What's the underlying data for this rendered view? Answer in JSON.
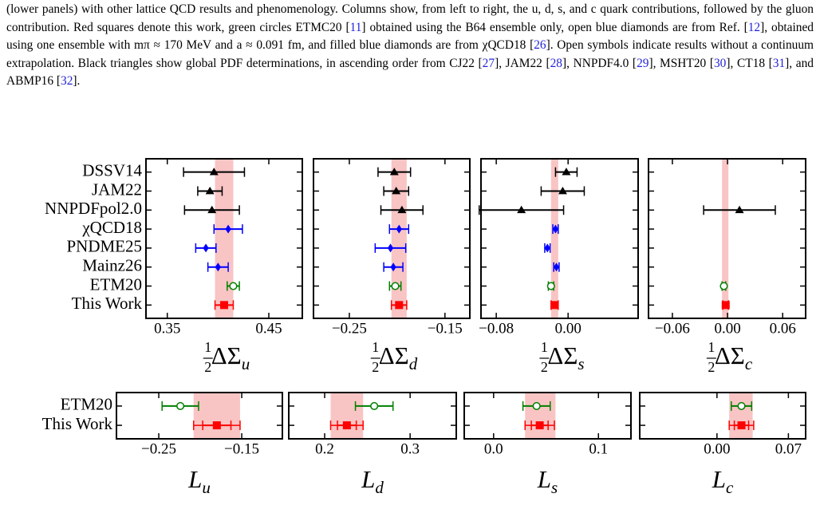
{
  "caption": [
    "(lower panels) with other lattice QCD results and phenomenology. Columns show, from left to right, the u, d, s, and c quark contributions, followed by the gluon contribution. Red squares denote this work, green circles ETMC20 [",
    "11",
    "] obtained using the B64 ensemble only, open blue diamonds are from Ref. [",
    "12",
    "], obtained using one ensemble with mπ ≈ 170 MeV and a ≈ 0.091 fm, and filled blue diamonds are from χQCD18 [",
    "26",
    "]. Open symbols indicate results without a continuum extrapolation. Black triangles show global PDF determinations, in ascending order from CJ22 [",
    "27",
    "], JAM22 [",
    "28",
    "], NNPDF4.0 [",
    "29",
    "], MSHT20 [",
    "30",
    "], CT18 [",
    "31",
    "], and ABMP16 [",
    "32",
    "]."
  ],
  "chart_data": [
    {
      "type": "errorbar",
      "categories": [
        "DSSV14",
        "JAM22",
        "NNPDFpol2.0",
        "χQCD18",
        "PNDME25",
        "Mainz26",
        "ETM20",
        "This Work"
      ],
      "values": [
        0.396,
        0.392,
        0.394,
        0.41,
        0.388,
        0.4,
        0.415,
        0.406
      ],
      "errors": [
        0.03,
        0.012,
        0.027,
        0.014,
        0.01,
        0.01,
        0.006,
        0.009
      ],
      "markers": [
        "triangle",
        "triangle",
        "triangle",
        "diamond",
        "diamond",
        "diamond",
        "open-circle",
        "square"
      ],
      "colors": [
        "#000000",
        "#000000",
        "#000000",
        "#0000ff",
        "#0000ff",
        "#0000ff",
        "#008000",
        "#ff0000"
      ],
      "band": [
        0.397,
        0.415
      ],
      "band_color": "#f9c4c4",
      "xlim": [
        0.329,
        0.483
      ],
      "xticks": [
        0.35,
        0.45
      ],
      "xlabel": {
        "num": "1",
        "den": "2",
        "symbol": "ΔΣ",
        "sub": "u"
      }
    },
    {
      "type": "errorbar",
      "values": [
        -0.203,
        -0.201,
        -0.195,
        -0.198,
        -0.207,
        -0.204,
        -0.202,
        -0.198
      ],
      "errors": [
        0.017,
        0.013,
        0.022,
        0.01,
        0.016,
        0.01,
        0.006,
        0.008
      ],
      "markers": [
        "triangle",
        "triangle",
        "triangle",
        "diamond",
        "diamond",
        "diamond",
        "open-circle",
        "square"
      ],
      "colors": [
        "#000000",
        "#000000",
        "#000000",
        "#0000ff",
        "#0000ff",
        "#0000ff",
        "#008000",
        "#ff0000"
      ],
      "band": [
        -0.206,
        -0.19
      ],
      "band_color": "#f9c4c4",
      "xlim": [
        -0.2875,
        -0.124
      ],
      "xticks": [
        {
          "value": -0.25,
          "label": "−0.25"
        },
        {
          "value": -0.15,
          "label": "−0.15"
        }
      ],
      "xlabel": {
        "num": "1",
        "den": "2",
        "symbol": "ΔΣ",
        "sub": "d"
      }
    },
    {
      "type": "errorbar",
      "values": [
        -0.002,
        -0.006,
        -0.052,
        -0.014,
        -0.023,
        -0.013,
        -0.019,
        -0.015
      ],
      "errors": [
        0.012,
        0.024,
        0.047,
        0.003,
        0.003,
        0.003,
        0.003,
        0.004
      ],
      "markers": [
        "triangle",
        "triangle",
        "triangle",
        "diamond",
        "diamond",
        "diamond",
        "open-circle",
        "square"
      ],
      "colors": [
        "#000000",
        "#000000",
        "#000000",
        "#0000ff",
        "#0000ff",
        "#0000ff",
        "#008000",
        "#ff0000"
      ],
      "band": [
        -0.019,
        -0.011
      ],
      "band_color": "#f9c4c4",
      "xlim": [
        -0.097,
        0.078
      ],
      "xticks": [
        {
          "value": -0.08,
          "label": "−0.08"
        },
        {
          "value": 0,
          "label": "0.00"
        }
      ],
      "xlabel": {
        "num": "1",
        "den": "2",
        "symbol": "ΔΣ",
        "sub": "s"
      }
    },
    {
      "type": "errorbar",
      "values": [
        null,
        null,
        0.013,
        null,
        null,
        null,
        -0.004,
        -0.002
      ],
      "errors": [
        null,
        null,
        0.039,
        null,
        null,
        null,
        0.002,
        0.003
      ],
      "markers": [
        "triangle",
        "triangle",
        "triangle",
        "diamond",
        "diamond",
        "diamond",
        "open-circle",
        "square"
      ],
      "colors": [
        "#000000",
        "#000000",
        "#000000",
        "#0000ff",
        "#0000ff",
        "#0000ff",
        "#008000",
        "#ff0000"
      ],
      "band": [
        -0.006,
        0.001
      ],
      "band_color": "#f9c4c4",
      "xlim": [
        -0.086,
        0.085
      ],
      "xticks": [
        {
          "value": -0.06,
          "label": "−0.06"
        },
        {
          "value": 0,
          "label": "0.00"
        },
        0.06
      ],
      "xlabel": {
        "num": "1",
        "den": "2",
        "symbol": "ΔΣ",
        "sub": "c"
      }
    },
    {
      "type": "errorbar",
      "categories": [
        "ETM20",
        "This Work"
      ],
      "values": [
        -0.224,
        -0.18
      ],
      "errors": [
        0.022,
        0.017
      ],
      "total_errors": [
        null,
        0.028
      ],
      "markers": [
        "open-circle",
        "square"
      ],
      "colors": [
        "#008000",
        "#ff0000"
      ],
      "band": [
        -0.208,
        -0.152
      ],
      "band_color": "#f9c4c4",
      "xlim": [
        -0.301,
        -0.101
      ],
      "xticks": [
        {
          "value": -0.25,
          "label": "−0.25"
        },
        {
          "value": -0.15,
          "label": "−0.15"
        }
      ],
      "xlabel": {
        "symbol": "L",
        "sub": "u"
      }
    },
    {
      "type": "errorbar",
      "values": [
        0.258,
        0.226
      ],
      "errors": [
        0.022,
        0.011
      ],
      "total_errors": [
        null,
        0.019
      ],
      "markers": [
        "open-circle",
        "square"
      ],
      "colors": [
        "#008000",
        "#ff0000"
      ],
      "band": [
        0.207,
        0.245
      ],
      "band_color": "#f9c4c4",
      "xlim": [
        0.158,
        0.354
      ],
      "xticks": [
        0.2,
        0.3
      ],
      "xlabel": {
        "symbol": "L",
        "sub": "d"
      }
    },
    {
      "type": "errorbar",
      "values": [
        0.041,
        0.044
      ],
      "errors": [
        0.013,
        0.008
      ],
      "total_errors": [
        null,
        0.014
      ],
      "markers": [
        "open-circle",
        "square"
      ],
      "colors": [
        "#008000",
        "#ff0000"
      ],
      "band": [
        0.03,
        0.059
      ],
      "band_color": "#f9c4c4",
      "xlim": [
        -0.028,
        0.131
      ],
      "xticks": [
        {
          "value": 0,
          "label": "0.0"
        },
        0.1
      ],
      "xlabel": {
        "symbol": "L",
        "sub": "s"
      }
    },
    {
      "type": "errorbar",
      "values": [
        0.024,
        0.024
      ],
      "errors": [
        0.01,
        0.007
      ],
      "total_errors": [
        null,
        0.012
      ],
      "markers": [
        "open-circle",
        "square"
      ],
      "colors": [
        "#008000",
        "#ff0000"
      ],
      "band": [
        0.012,
        0.035
      ],
      "band_color": "#f9c4c4",
      "xlim": [
        -0.0757,
        0.0869
      ],
      "xticks": [
        {
          "value": 0,
          "label": "0.00"
        },
        0.07
      ],
      "xlabel": {
        "symbol": "L",
        "sub": "c"
      }
    }
  ]
}
